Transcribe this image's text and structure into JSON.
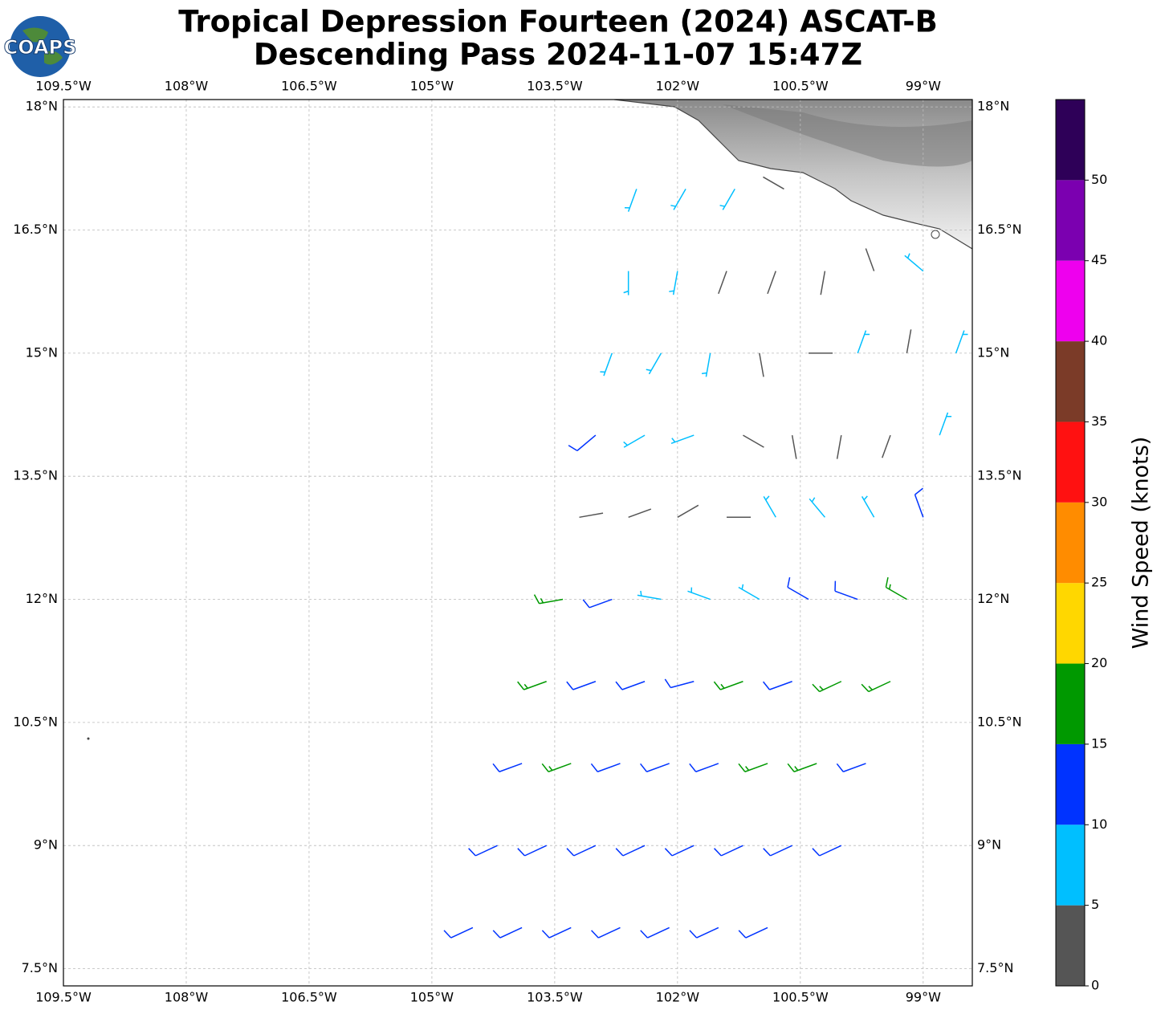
{
  "chart_data": {
    "type": "barbs",
    "logo": "COAPS",
    "title": "Tropical Depression Fourteen (2024) ASCAT-B",
    "subtitle": "Descending Pass 2024-11-07 15:47Z",
    "xlim": [
      -109.5,
      -98.4
    ],
    "ylim": [
      7.29,
      18.09
    ],
    "xticks": [
      {
        "value": -109.5,
        "label": "109.5°W"
      },
      {
        "value": -108,
        "label": "108°W"
      },
      {
        "value": -106.5,
        "label": "106.5°W"
      },
      {
        "value": -105,
        "label": "105°W"
      },
      {
        "value": -103.5,
        "label": "103.5°W"
      },
      {
        "value": -102,
        "label": "102°W"
      },
      {
        "value": -100.5,
        "label": "100.5°W"
      },
      {
        "value": -99,
        "label": "99°W"
      }
    ],
    "yticks": [
      {
        "value": 18,
        "label": "18°N"
      },
      {
        "value": 16.5,
        "label": "16.5°N"
      },
      {
        "value": 15,
        "label": "15°N"
      },
      {
        "value": 13.5,
        "label": "13.5°N"
      },
      {
        "value": 12,
        "label": "12°N"
      },
      {
        "value": 10.5,
        "label": "10.5°N"
      },
      {
        "value": 9,
        "label": "9°N"
      },
      {
        "value": 7.5,
        "label": "7.5°N"
      }
    ],
    "grid": true,
    "rows": [
      {
        "lat": 8.0,
        "lon": [
          -104.5,
          -103.9,
          -103.3,
          -102.7,
          -102.1,
          -101.5,
          -100.9
        ],
        "speed": [
          12,
          12,
          12,
          12,
          12,
          12,
          12
        ],
        "direction": [
          245,
          245,
          245,
          245,
          245,
          245,
          245
        ]
      },
      {
        "lat": 9.0,
        "lon": [
          -104.2,
          -103.6,
          -103.0,
          -102.4,
          -101.8,
          -101.2,
          -100.6,
          -100.0
        ],
        "speed": [
          12,
          12,
          13,
          12,
          12,
          13,
          14,
          13
        ],
        "direction": [
          245,
          245,
          245,
          245,
          245,
          245,
          245,
          245
        ]
      },
      {
        "lat": 10.0,
        "lon": [
          -103.9,
          -103.3,
          -102.7,
          -102.1,
          -101.5,
          -100.9,
          -100.3,
          -99.7
        ],
        "speed": [
          13,
          17,
          13,
          12,
          14,
          16,
          17,
          14
        ],
        "direction": [
          250,
          250,
          250,
          250,
          250,
          250,
          250,
          250
        ]
      },
      {
        "lat": 11.0,
        "lon": [
          -103.6,
          -103.0,
          -102.4,
          -101.8,
          -101.2,
          -100.6,
          -100.0,
          -99.4
        ],
        "speed": [
          17,
          13,
          12,
          13,
          16,
          14,
          17,
          16
        ],
        "direction": [
          250,
          250,
          250,
          255,
          250,
          250,
          245,
          245
        ]
      },
      {
        "lat": 12.0,
        "lon": [
          -103.4,
          -102.8,
          -102.2,
          -101.6,
          -101.0,
          -100.4,
          -99.8,
          -99.2
        ],
        "speed": [
          17,
          13,
          8,
          7,
          8,
          12,
          14,
          17
        ],
        "direction": [
          260,
          250,
          280,
          290,
          300,
          300,
          290,
          300
        ]
      },
      {
        "lat": 13.0,
        "lon": [
          -103.2,
          -102.6,
          -102.0,
          -101.4,
          -100.8,
          -100.2,
          -99.6,
          -99.0
        ],
        "speed": [
          4,
          3,
          3,
          4,
          7,
          8,
          9,
          12
        ],
        "direction": [
          80,
          70,
          60,
          90,
          330,
          320,
          330,
          340
        ]
      },
      {
        "lat": 14.0,
        "lon": [
          -103.0,
          -102.4,
          -101.8,
          -101.2,
          -100.6,
          -100.0,
          -99.4,
          -98.8
        ],
        "speed": [
          12,
          8,
          7,
          3,
          3,
          4,
          4,
          7
        ],
        "direction": [
          230,
          240,
          250,
          120,
          170,
          190,
          200,
          20
        ]
      },
      {
        "lat": 15.0,
        "lon": [
          -102.8,
          -102.2,
          -101.6,
          -101.0,
          -100.4,
          -99.8,
          -99.2,
          -98.6
        ],
        "speed": [
          8,
          7,
          8,
          4,
          4,
          7,
          3,
          6
        ],
        "direction": [
          200,
          210,
          190,
          170,
          90,
          20,
          10,
          20
        ]
      },
      {
        "lat": 16.0,
        "lon": [
          -102.6,
          -102.0,
          -101.4,
          -100.8,
          -100.2,
          -99.6,
          -99.0
        ],
        "speed": [
          8,
          9,
          4,
          3,
          3,
          4,
          7
        ],
        "direction": [
          180,
          190,
          200,
          200,
          190,
          340,
          310
        ]
      },
      {
        "lat": 17.0,
        "lon": [
          -102.5,
          -101.9,
          -101.3,
          -100.7
        ],
        "speed": [
          7,
          8,
          8,
          4
        ],
        "direction": [
          200,
          210,
          210,
          300
        ]
      }
    ],
    "colorbar": {
      "label": "Wind Speed (knots)",
      "bounds": [
        0,
        5,
        10,
        15,
        20,
        25,
        30,
        35,
        40,
        45,
        50,
        55
      ],
      "colors": [
        "#555555",
        "#00bfff",
        "#0033ff",
        "#009900",
        "#ffd700",
        "#ff8c00",
        "#ff1111",
        "#7b3b28",
        "#ee00ee",
        "#7b00b0",
        "#2e0058"
      ],
      "ticks": [
        0,
        5,
        10,
        15,
        20,
        25,
        30,
        35,
        40,
        45,
        50
      ]
    }
  }
}
